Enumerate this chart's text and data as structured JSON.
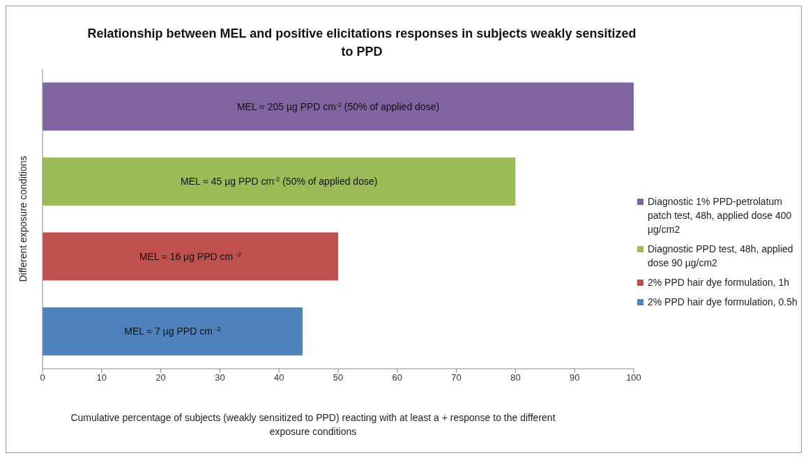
{
  "chart_data": {
    "type": "bar",
    "orientation": "horizontal",
    "title": "Relationship between MEL and positive elicitations responses in subjects weakly sensitized to PPD",
    "xlabel": "Cumulative percentage of subjects (weakly sensitized to PPD) reacting with at least a + response to the different exposure conditions",
    "ylabel": "Different exposure conditions",
    "categories": [
      null,
      null,
      null,
      null
    ],
    "series": [
      {
        "name": "Diagnostic 1% PPD-petrolatum patch test, 48h, applied dose 400 µg/cm2",
        "color": "#8064a2",
        "values": [
          100,
          null,
          null,
          null
        ]
      },
      {
        "name": "Diagnostic PPD test, 48h, applied dose 90 µg/cm2",
        "color": "#9bbb59",
        "values": [
          null,
          80,
          null,
          null
        ]
      },
      {
        "name": "2% PPD hair dye formulation, 1h",
        "color": "#c0504d",
        "values": [
          null,
          null,
          50,
          null
        ]
      },
      {
        "name": "2% PPD hair dye formulation, 0.5h",
        "color": "#4f81bd",
        "values": [
          null,
          null,
          null,
          44
        ]
      }
    ],
    "annotations": [
      "MEL ≈ 205 µg PPD cm$^{-2}$ (50% of applied dose)",
      "MEL ≈ 45 µg PPD cm$^{-2}$ (50% of applied dose)",
      "MEL ≈ 16 µg PPD cm $^{-2}$",
      "MEL  ≈ 7 µg PPD cm $^{-2}$"
    ],
    "xlim": [
      0,
      100
    ],
    "xticks": [
      0,
      10,
      20,
      30,
      40,
      50,
      60,
      70,
      80,
      90,
      100
    ],
    "grid": false,
    "legend": "right"
  }
}
